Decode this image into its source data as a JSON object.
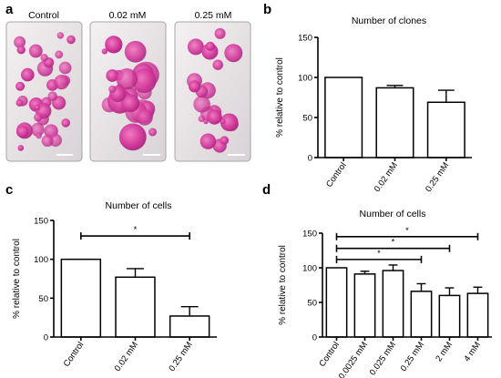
{
  "panel_a": {
    "label": "a",
    "plates": [
      {
        "label": "Control"
      },
      {
        "label": "0.02 mM"
      },
      {
        "label": "0.25 mM"
      }
    ]
  },
  "chart_data": [
    {
      "panel": "b",
      "type": "bar",
      "title": "Number of clones",
      "ylabel": "% relative to control",
      "categories": [
        "Control",
        "0.02 mM",
        "0.25 mM"
      ],
      "values": [
        100,
        87,
        69
      ],
      "errors": [
        0,
        3,
        15
      ],
      "ylim": [
        0,
        150
      ],
      "yticks": [
        0,
        50,
        100,
        150
      ],
      "hatched": false,
      "significance": []
    },
    {
      "panel": "c",
      "type": "bar",
      "title": "Number of cells",
      "ylabel": "%  relative to control",
      "categories": [
        "Control",
        "0.02 mM",
        "0.25 mM"
      ],
      "values": [
        100,
        77,
        27
      ],
      "errors": [
        0,
        11,
        12
      ],
      "ylim": [
        0,
        150
      ],
      "yticks": [
        0,
        50,
        100,
        150
      ],
      "hatched": true,
      "significance": [
        {
          "from": 0,
          "to": 2,
          "y": 130,
          "mark": "*"
        }
      ]
    },
    {
      "panel": "d",
      "type": "bar",
      "title": "Number of cells",
      "ylabel": "% relative to control",
      "categories": [
        "Control",
        "0.0025 mM",
        "0.025 mM",
        "0.25 mM",
        "2 mM",
        "4 mM"
      ],
      "values": [
        100,
        91,
        96,
        66,
        60,
        63
      ],
      "errors": [
        0,
        4,
        8,
        11,
        11,
        9
      ],
      "ylim": [
        0,
        150
      ],
      "yticks": [
        0,
        50,
        100,
        150
      ],
      "hatched": false,
      "significance": [
        {
          "from": 0,
          "to": 5,
          "y": 145,
          "mark": "*"
        },
        {
          "from": 0,
          "to": 4,
          "y": 128,
          "mark": "*"
        },
        {
          "from": 0,
          "to": 3,
          "y": 112,
          "mark": "*"
        }
      ]
    }
  ]
}
